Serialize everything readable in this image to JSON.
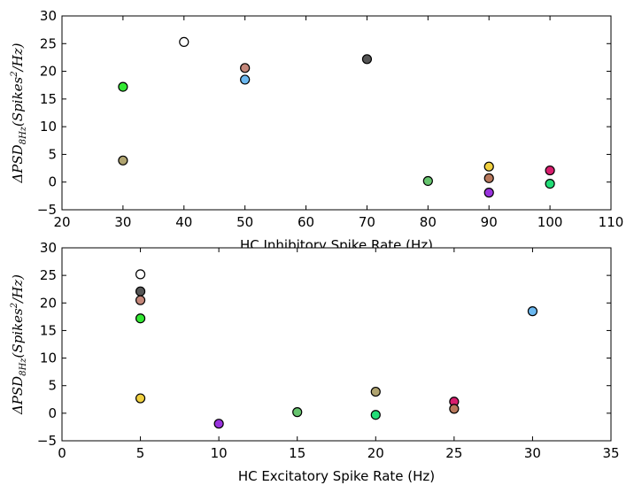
{
  "chart_data": [
    {
      "type": "scatter",
      "title": "",
      "xlabel": "HC Inhibitory Spike Rate (Hz)",
      "ylabel": "ΔPSD8Hz(Spikes²/Hz)",
      "ylabel_main": "ΔPSD",
      "ylabel_sub": "8Hz",
      "ylabel_body": "(Spikes",
      "ylabel_sup": "2",
      "ylabel_tail": "/Hz)",
      "xlim": [
        20,
        110
      ],
      "ylim": [
        -5,
        30
      ],
      "xticks": [
        20,
        30,
        40,
        50,
        60,
        70,
        80,
        90,
        100,
        110
      ],
      "yticks": [
        -5,
        0,
        5,
        10,
        15,
        20,
        25,
        30
      ],
      "grid": false,
      "points": [
        {
          "x": 40,
          "y": 25.3,
          "color": "#ffffff"
        },
        {
          "x": 50,
          "y": 20.6,
          "color": "#c4877a"
        },
        {
          "x": 50,
          "y": 18.5,
          "color": "#6bb8f0"
        },
        {
          "x": 70,
          "y": 22.2,
          "color": "#555555"
        },
        {
          "x": 30,
          "y": 17.2,
          "color": "#33e833"
        },
        {
          "x": 30,
          "y": 3.9,
          "color": "#b0a470"
        },
        {
          "x": 80,
          "y": 0.2,
          "color": "#66c46e"
        },
        {
          "x": 90,
          "y": 2.8,
          "color": "#f0d040"
        },
        {
          "x": 90,
          "y": 0.7,
          "color": "#b8785c"
        },
        {
          "x": 90,
          "y": -1.9,
          "color": "#9933dd"
        },
        {
          "x": 100,
          "y": 2.1,
          "color": "#d81e6e"
        },
        {
          "x": 100,
          "y": -0.3,
          "color": "#22dd77"
        }
      ]
    },
    {
      "type": "scatter",
      "title": "",
      "xlabel": "HC Excitatory Spike Rate (Hz)",
      "ylabel": "ΔPSD8Hz(Spikes²/Hz)",
      "ylabel_main": "ΔPSD",
      "ylabel_sub": "8Hz",
      "ylabel_body": "(Spikes",
      "ylabel_sup": "2",
      "ylabel_tail": "/Hz)",
      "xlim": [
        0,
        35
      ],
      "ylim": [
        -5,
        30
      ],
      "xticks": [
        0,
        5,
        10,
        15,
        20,
        25,
        30,
        35
      ],
      "yticks": [
        -5,
        0,
        5,
        10,
        15,
        20,
        25,
        30
      ],
      "grid": false,
      "points": [
        {
          "x": 5,
          "y": 25.2,
          "color": "#ffffff"
        },
        {
          "x": 5,
          "y": 22.1,
          "color": "#555555"
        },
        {
          "x": 5,
          "y": 20.5,
          "color": "#c4877a"
        },
        {
          "x": 5,
          "y": 17.2,
          "color": "#33e833"
        },
        {
          "x": 5,
          "y": 2.7,
          "color": "#f0d040"
        },
        {
          "x": 10,
          "y": -1.9,
          "color": "#9933dd"
        },
        {
          "x": 15,
          "y": 0.2,
          "color": "#66c46e"
        },
        {
          "x": 20,
          "y": 3.9,
          "color": "#b0a470"
        },
        {
          "x": 20,
          "y": -0.3,
          "color": "#22dd77"
        },
        {
          "x": 25,
          "y": 2.1,
          "color": "#d81e6e"
        },
        {
          "x": 25,
          "y": 0.8,
          "color": "#b8785c"
        },
        {
          "x": 30,
          "y": 18.5,
          "color": "#6bb8f0"
        }
      ]
    }
  ]
}
